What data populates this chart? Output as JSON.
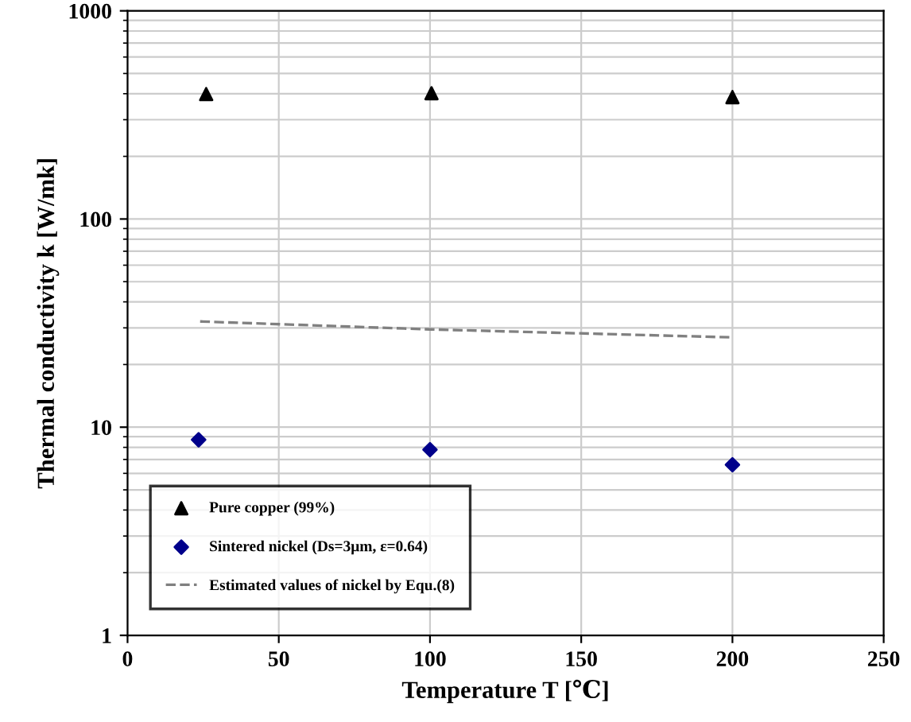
{
  "chart_data": {
    "type": "scatter",
    "xlabel": "Temperature T [℃]",
    "ylabel": "Thermal conductivity k [W/mk]",
    "log": "y",
    "xlim": [
      0,
      250
    ],
    "xticks": [
      0,
      50,
      100,
      150,
      200,
      250
    ],
    "ylim": [
      1,
      1000
    ],
    "yticks": [
      1,
      10,
      100,
      1000
    ],
    "grid": true,
    "legend": "bottom left",
    "series": [
      {
        "name": "Pure copper (99%)",
        "marker": "triangle",
        "color": "#000000",
        "x": [
          26,
          100.5,
          200
        ],
        "values": [
          398,
          402,
          385
        ]
      },
      {
        "name": "Sintered nickel (Ds=3μm, ε=0.64)",
        "marker": "diamond",
        "color": "#00008b",
        "x": [
          23.5,
          100,
          200
        ],
        "values": [
          8.7,
          7.8,
          6.6
        ]
      },
      {
        "name": "Estimated values of nickel by Equ.(8)",
        "type": "line",
        "marker": "none",
        "line_style": "dashed",
        "color": "#808080",
        "x": [
          24,
          100,
          200
        ],
        "values": [
          32.2,
          29.5,
          27
        ]
      }
    ]
  }
}
